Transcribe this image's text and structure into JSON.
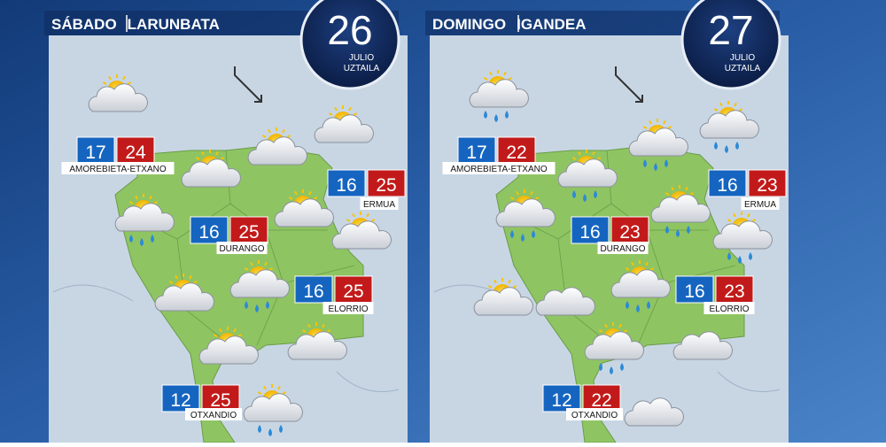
{
  "panels": [
    {
      "day": "SÁBADO",
      "day_eu": "LARUNBATA",
      "date": "26",
      "month": "JULIO",
      "month_eu": "UZTAILA",
      "cities": [
        {
          "name": "AMOREBIETA-ETXANO",
          "min": "17",
          "max": "24"
        },
        {
          "name": "ERMUA",
          "min": "16",
          "max": "25"
        },
        {
          "name": "DURANGO",
          "min": "16",
          "max": "25"
        },
        {
          "name": "ELORRIO",
          "min": "16",
          "max": "25"
        },
        {
          "name": "OTXANDIO",
          "min": "12",
          "max": "25"
        }
      ]
    },
    {
      "day": "DOMINGO",
      "day_eu": "IGANDEA",
      "date": "27",
      "month": "JULIO",
      "month_eu": "UZTAILA",
      "cities": [
        {
          "name": "AMOREBIETA-ETXANO",
          "min": "17",
          "max": "22"
        },
        {
          "name": "ERMUA",
          "min": "16",
          "max": "23"
        },
        {
          "name": "DURANGO",
          "min": "16",
          "max": "23"
        },
        {
          "name": "ELORRIO",
          "min": "16",
          "max": "23"
        },
        {
          "name": "OTXANDIO",
          "min": "12",
          "max": "22"
        }
      ]
    }
  ]
}
